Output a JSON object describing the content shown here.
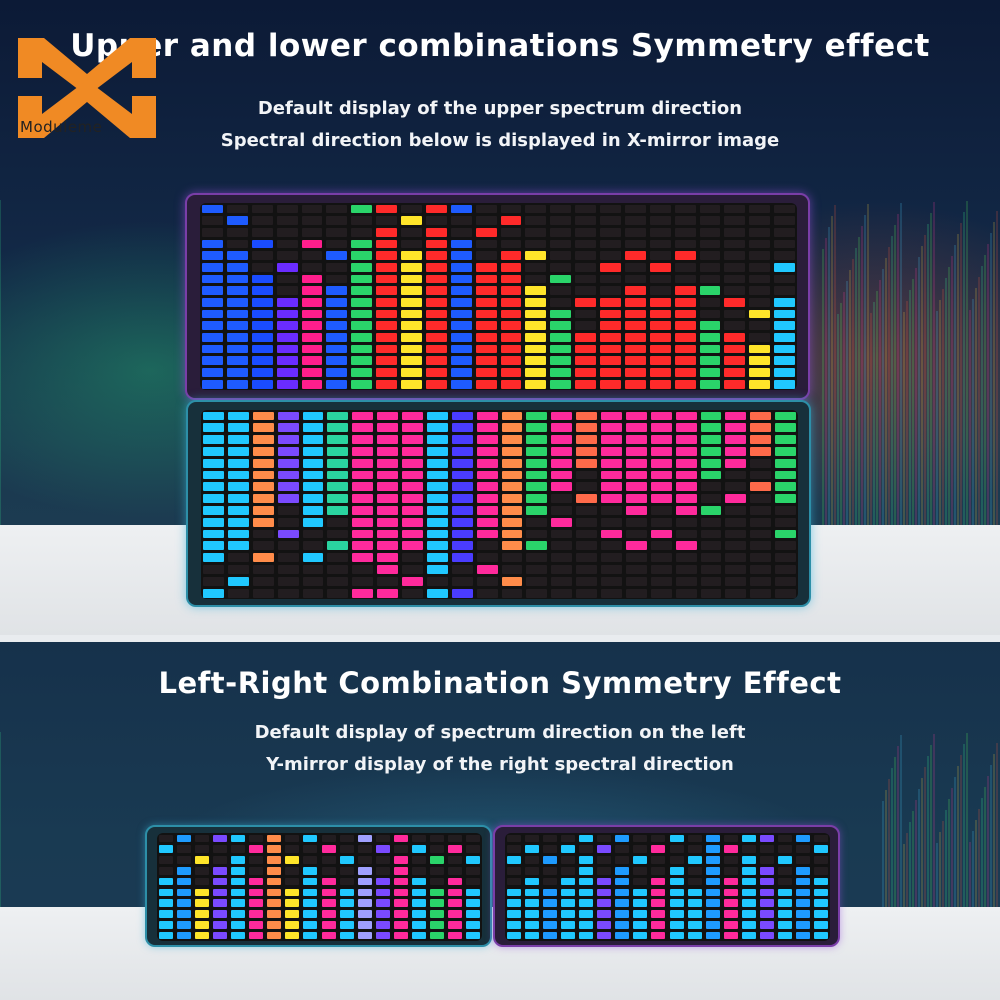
{
  "logo": {
    "text": "Moduleme",
    "accent": "#f08a24"
  },
  "top_section": {
    "title": "Upper and lower combinations Symmetry effect",
    "subtitle_1": "Default display of the upper spectrum direction",
    "subtitle_2": "Spectral direction below is displayed in X-mirror image"
  },
  "bottom_section": {
    "title": "Left-Right Combination Symmetry Effect",
    "subtitle_1": "Default display of spectrum direction on the left",
    "subtitle_2": "Y-mirror display of the right spectral direction"
  },
  "colors": {
    "background_top": "#0c1a36",
    "background_bottom": "#193a52",
    "floor": "#eef0f2",
    "screen": "#121212"
  }
}
